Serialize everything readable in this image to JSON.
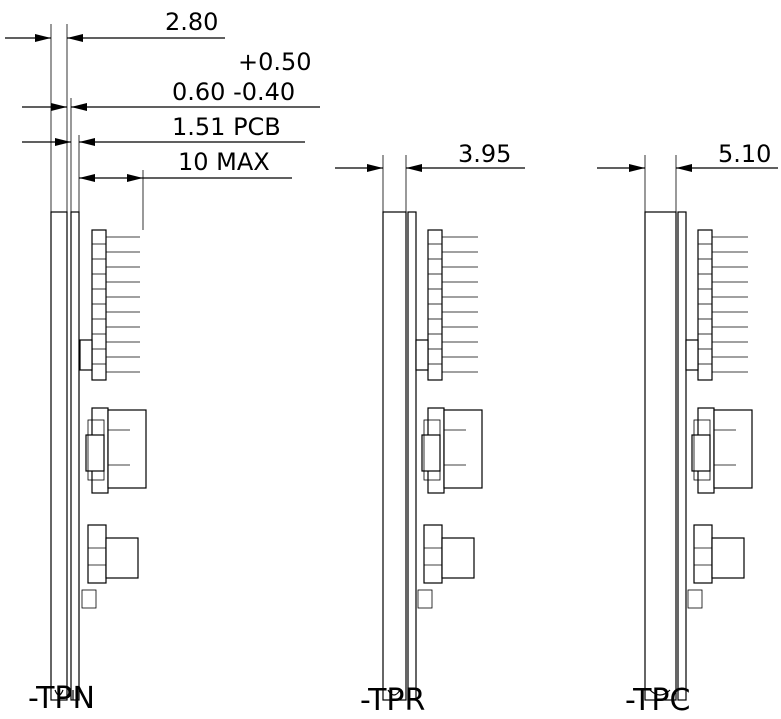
{
  "dimensions": {
    "d1": "2.80",
    "d2_plus": "+0.50",
    "d2": "0.60 -0.40",
    "d3": "1.51 PCB",
    "d4": "10 MAX",
    "d5": "3.95",
    "d6": "5.10"
  },
  "variants": [
    {
      "label": "-TPN"
    },
    {
      "label": "-TPR"
    },
    {
      "label": "-TPC"
    }
  ]
}
